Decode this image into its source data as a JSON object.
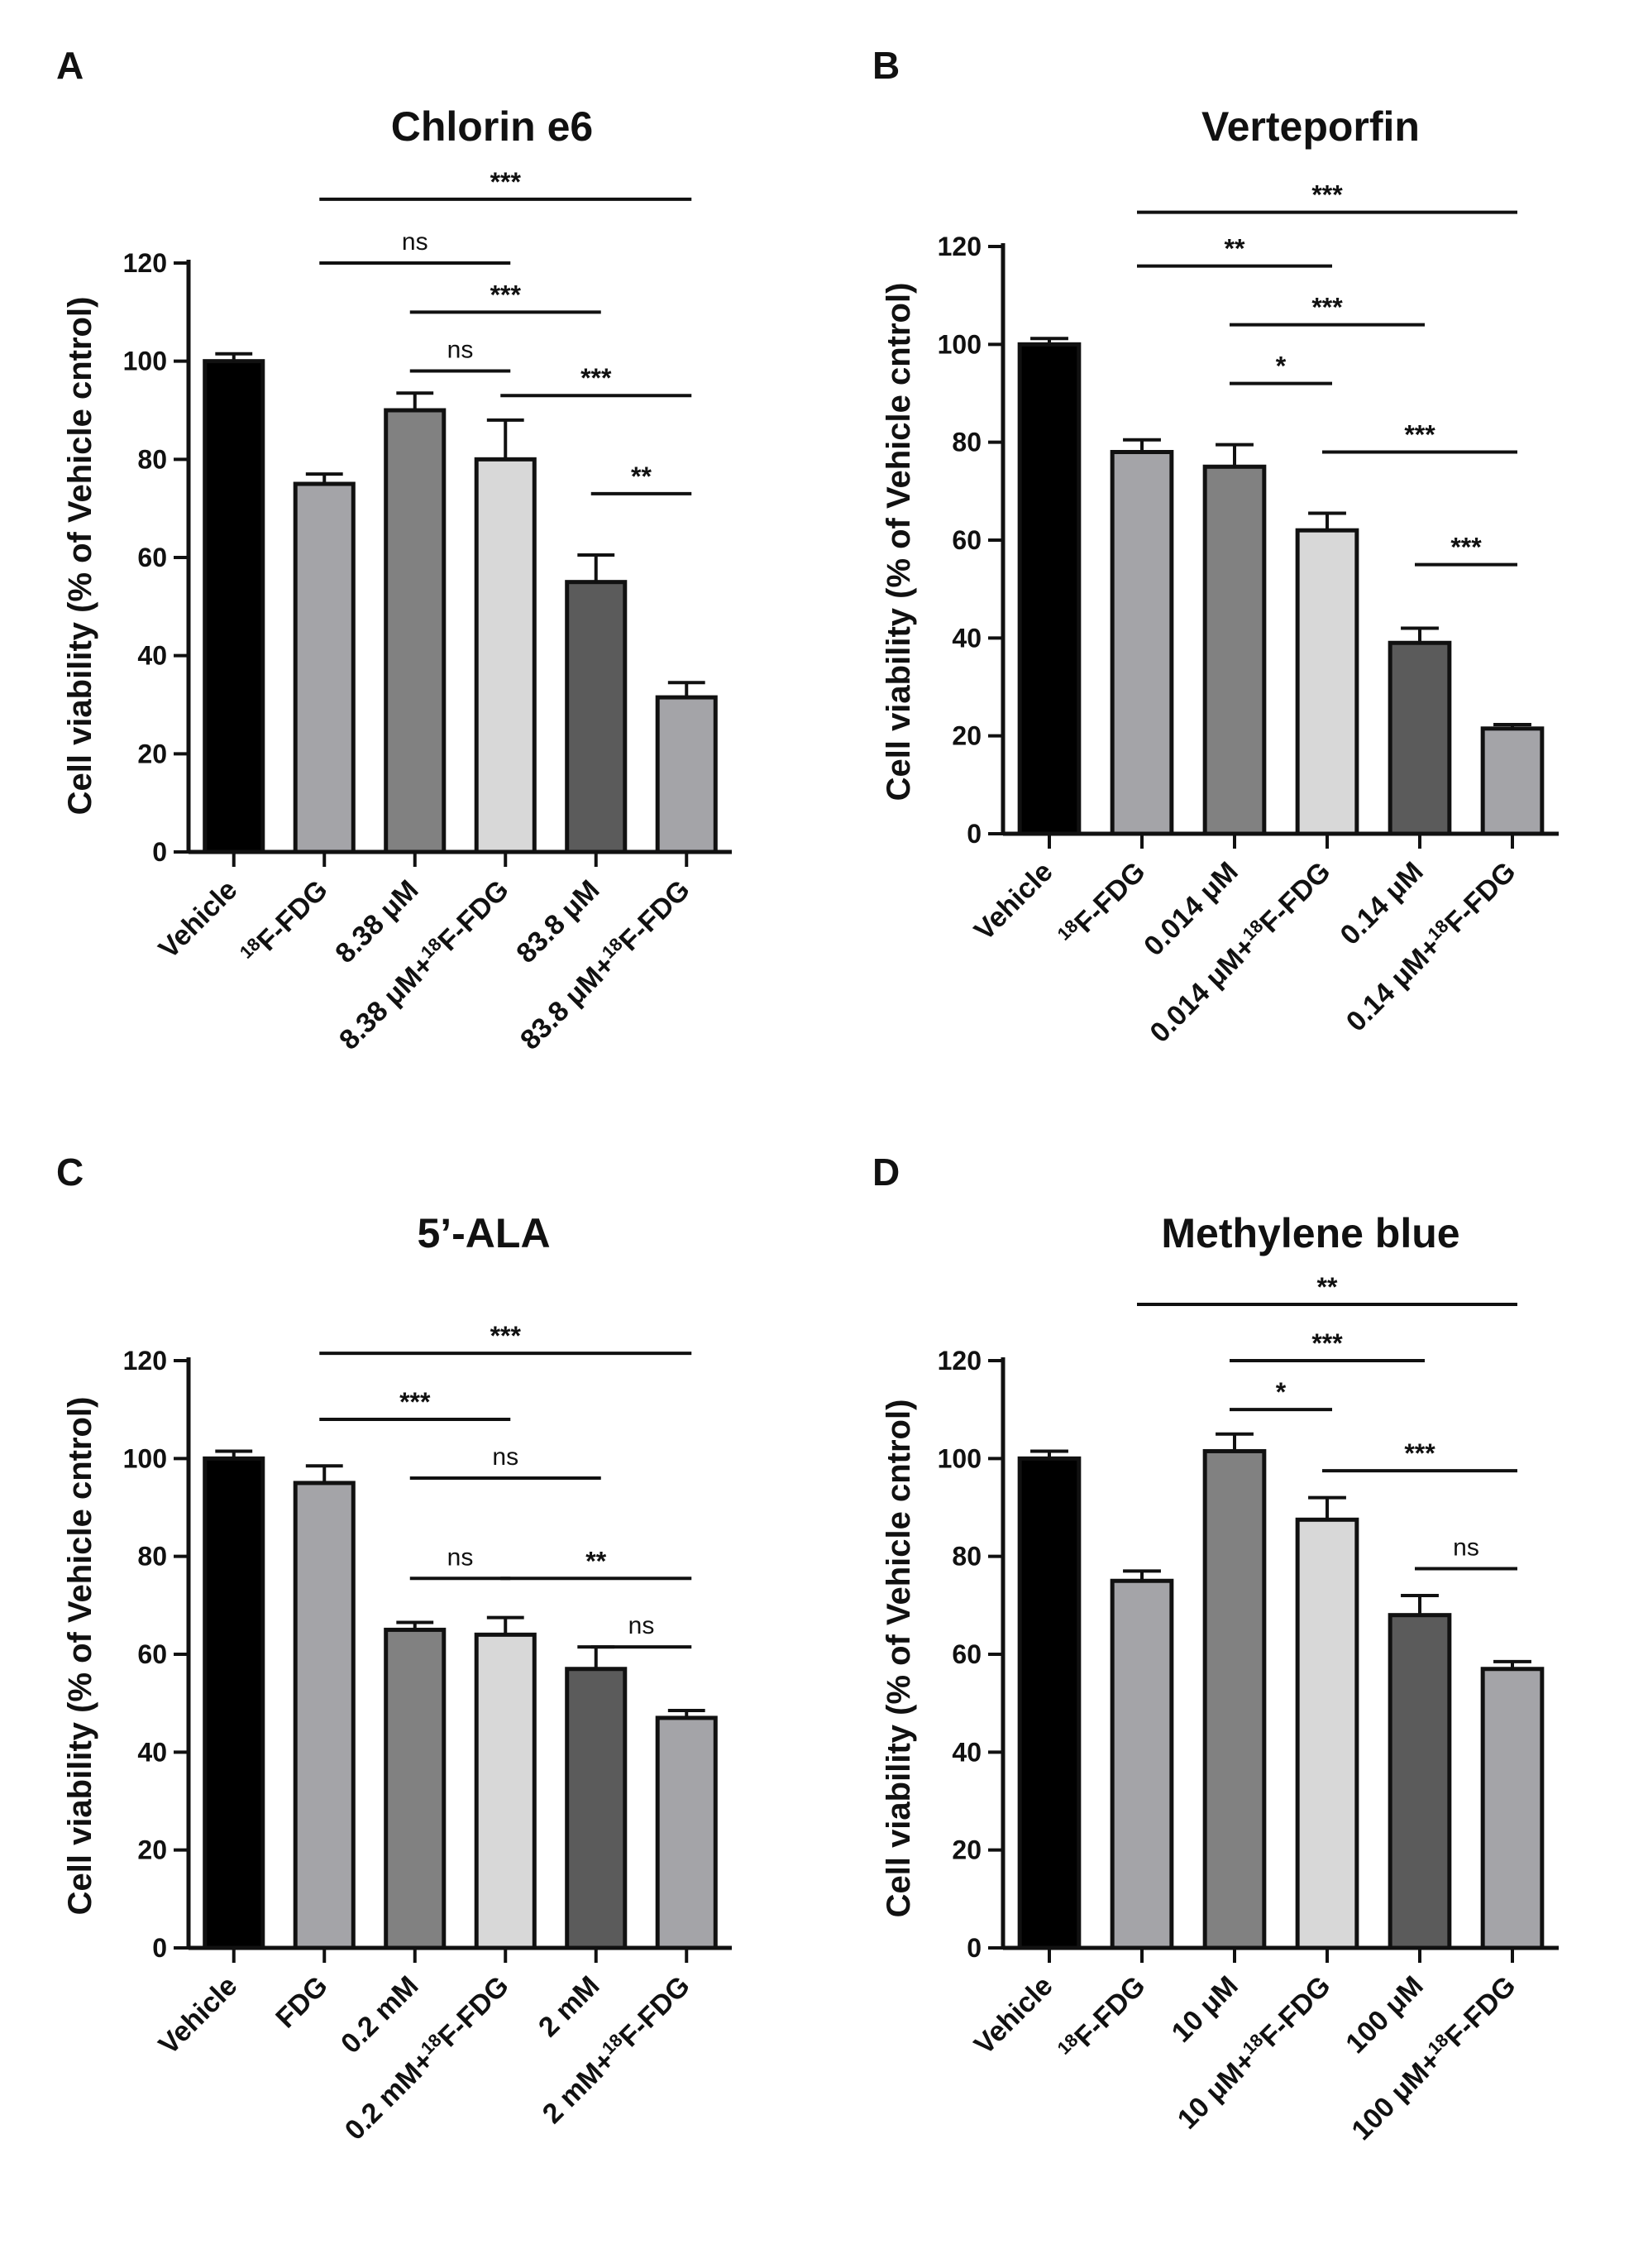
{
  "figure": {
    "colors": {
      "ink": "#111111",
      "bar_colors": [
        "#000000",
        "#a4a4a8",
        "#818181",
        "#d8d8d8",
        "#5b5b5b",
        "#a4a4a8"
      ]
    }
  },
  "chart_data": [
    {
      "panel": "A",
      "type": "bar",
      "title": "Chlorin e6",
      "ylabel": "Cell viability (% of Vehicle cntrol)",
      "xlabel": "",
      "ylim": [
        0,
        120
      ],
      "yticks": [
        "0",
        "20",
        "40",
        "60",
        "80",
        "100",
        "120"
      ],
      "categories": [
        {
          "text": "Vehicle"
        },
        {
          "sup": "18",
          "text": "F-FDG"
        },
        {
          "text": "8.38 μM"
        },
        {
          "text": "8.38 μM+",
          "sup": "18",
          "rest": "F-FDG"
        },
        {
          "text": "83.8 μM"
        },
        {
          "text": "83.8 μM+",
          "sup": "18",
          "rest": "F-FDG"
        }
      ],
      "values": [
        100,
        75,
        90,
        80,
        55,
        31.5
      ],
      "errors": [
        1.5,
        2,
        3.5,
        8,
        5.5,
        3
      ],
      "significance": [
        {
          "from": 1,
          "to": 5,
          "label": "***",
          "y": 133
        },
        {
          "from": 1,
          "to": 3,
          "label": "ns",
          "y": 120
        },
        {
          "from": 2,
          "to": 4,
          "label": "***",
          "y": 110
        },
        {
          "from": 2,
          "to": 3,
          "label": "ns",
          "y": 98
        },
        {
          "from": 3,
          "to": 5,
          "label": "***",
          "y": 93
        },
        {
          "from": 4,
          "to": 5,
          "label": "**",
          "y": 73
        }
      ]
    },
    {
      "panel": "B",
      "type": "bar",
      "title": "Verteporfin",
      "ylabel": "Cell viability (% of Vehicle cntrol)",
      "xlabel": "",
      "ylim": [
        0,
        120
      ],
      "yticks": [
        "0",
        "20",
        "40",
        "60",
        "80",
        "100",
        "120"
      ],
      "categories": [
        {
          "text": "Vehicle"
        },
        {
          "sup": "18",
          "text": "F-FDG"
        },
        {
          "text": "0.014 μM"
        },
        {
          "text": "0.014 μM+",
          "sup": "18",
          "rest": "F-FDG"
        },
        {
          "text": "0.14 μM"
        },
        {
          "text": "0.14 μM+",
          "sup": "18",
          "rest": "F-FDG"
        }
      ],
      "values": [
        100,
        78,
        75,
        62,
        39,
        21.5
      ],
      "errors": [
        1.2,
        2.5,
        4.5,
        3.5,
        3,
        0.8
      ],
      "significance": [
        {
          "from": 1,
          "to": 5,
          "label": "***",
          "y": 127
        },
        {
          "from": 1,
          "to": 3,
          "label": "**",
          "y": 116
        },
        {
          "from": 2,
          "to": 4,
          "label": "***",
          "y": 104
        },
        {
          "from": 2,
          "to": 3,
          "label": "*",
          "y": 92
        },
        {
          "from": 3,
          "to": 5,
          "label": "***",
          "y": 78
        },
        {
          "from": 4,
          "to": 5,
          "label": "***",
          "y": 55
        }
      ]
    },
    {
      "panel": "C",
      "type": "bar",
      "title": "5’-ALA",
      "ylabel": "Cell viability (% of Vehicle cntrol)",
      "xlabel": "",
      "ylim": [
        0,
        120
      ],
      "yticks": [
        "0",
        "20",
        "40",
        "60",
        "80",
        "100",
        "120"
      ],
      "categories": [
        {
          "text": "Vehicle"
        },
        {
          "text": "FDG"
        },
        {
          "text": "0.2 mM"
        },
        {
          "text": "0.2 mM+",
          "sup": "18",
          "rest": "F-FDG"
        },
        {
          "text": "2 mM"
        },
        {
          "text": "2 mM+",
          "sup": "18",
          "rest": "F-FDG"
        }
      ],
      "values": [
        100,
        95,
        65,
        64,
        57,
        47
      ],
      "errors": [
        1.5,
        3.5,
        1.5,
        3.5,
        4.5,
        1.5
      ],
      "significance": [
        {
          "from": 1,
          "to": 5,
          "label": "***",
          "y": 121.5
        },
        {
          "from": 1,
          "to": 3,
          "label": "***",
          "y": 108
        },
        {
          "from": 2,
          "to": 4,
          "label": "ns",
          "y": 96
        },
        {
          "from": 2,
          "to": 3,
          "label": "ns",
          "y": 75.5
        },
        {
          "from": 3,
          "to": 5,
          "label": "**",
          "y": 75.5
        },
        {
          "from": 4,
          "to": 5,
          "label": "ns",
          "y": 61.5
        }
      ]
    },
    {
      "panel": "D",
      "type": "bar",
      "title": "Methylene blue",
      "ylabel": "Cell viability (% of Vehicle cntrol)",
      "xlabel": "",
      "ylim": [
        0,
        120
      ],
      "yticks": [
        "0",
        "20",
        "40",
        "60",
        "80",
        "100",
        "120"
      ],
      "categories": [
        {
          "text": "Vehicle"
        },
        {
          "sup": "18",
          "text": "F-FDG"
        },
        {
          "text": "10 μM"
        },
        {
          "text": "10 μM+",
          "sup": "18",
          "rest": "F-FDG"
        },
        {
          "text": "100 μM"
        },
        {
          "text": "100 μM+",
          "sup": "18",
          "rest": "F-FDG"
        }
      ],
      "values": [
        100,
        75,
        101.5,
        87.5,
        68,
        57
      ],
      "errors": [
        1.5,
        2,
        3.5,
        4.5,
        4,
        1.5
      ],
      "significance": [
        {
          "from": 1,
          "to": 5,
          "label": "**",
          "y": 131.5
        },
        {
          "from": 2,
          "to": 4,
          "label": "***",
          "y": 120
        },
        {
          "from": 2,
          "to": 3,
          "label": "*",
          "y": 110
        },
        {
          "from": 3,
          "to": 5,
          "label": "***",
          "y": 97.5
        },
        {
          "from": 4,
          "to": 5,
          "label": "ns",
          "y": 77.5
        }
      ]
    }
  ]
}
